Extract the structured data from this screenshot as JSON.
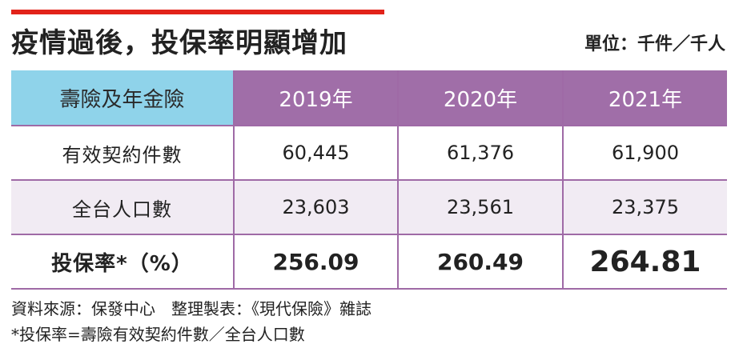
{
  "colors": {
    "accent_red": "#e2231a",
    "header_cyan": "#8fd3ea",
    "header_purple": "#a06ea8",
    "row_tint": "#f1ebf3",
    "grid_purple": "#9f6aa6"
  },
  "title": "疫情過後，投保率明顯增加",
  "unit": "單位：千件／千人",
  "chart_data": {
    "type": "table",
    "title": "疫情過後，投保率明顯增加",
    "unit": "單位：千件／千人",
    "columns": [
      "壽險及年金險",
      "2019年",
      "2020年",
      "2021年"
    ],
    "rows": [
      {
        "label": "有效契約件數",
        "values": [
          "60,445",
          "61,376",
          "61,900"
        ]
      },
      {
        "label": "全台人口數",
        "values": [
          "23,603",
          "23,561",
          "23,375"
        ]
      },
      {
        "label": "投保率*（%）",
        "values": [
          "256.09",
          "260.49",
          "264.81"
        ]
      }
    ]
  },
  "notes": {
    "source": "資料來源：保發中心　整理製表：《現代保險》雜誌",
    "footnote": "*投保率=壽險有效契約件數／全台人口數"
  }
}
